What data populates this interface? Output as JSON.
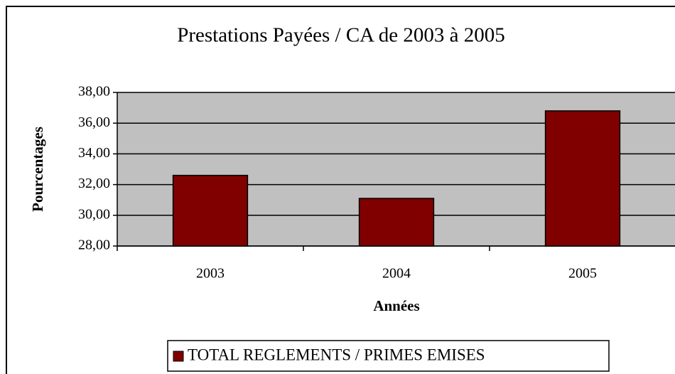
{
  "chart_data": {
    "type": "bar",
    "title": "Prestations Payées / CA de 2003 à 2005",
    "x_label": "Années",
    "y_label": "Pourcentages",
    "categories": [
      "2003",
      "2004",
      "2005"
    ],
    "series": [
      {
        "name": "TOTAL REGLEMENTS / PRIMES EMISES",
        "color": "#800000",
        "values": [
          32.6,
          31.1,
          36.8
        ]
      }
    ],
    "ylim": [
      28,
      38
    ],
    "yticks": [
      {
        "value": 28,
        "label": "28,00"
      },
      {
        "value": 30,
        "label": "30,00"
      },
      {
        "value": 32,
        "label": "32,00"
      },
      {
        "value": 34,
        "label": "34,00"
      },
      {
        "value": 36,
        "label": "36,00"
      },
      {
        "value": 38,
        "label": "38,00"
      }
    ],
    "grid": true,
    "legend": "bottom"
  }
}
